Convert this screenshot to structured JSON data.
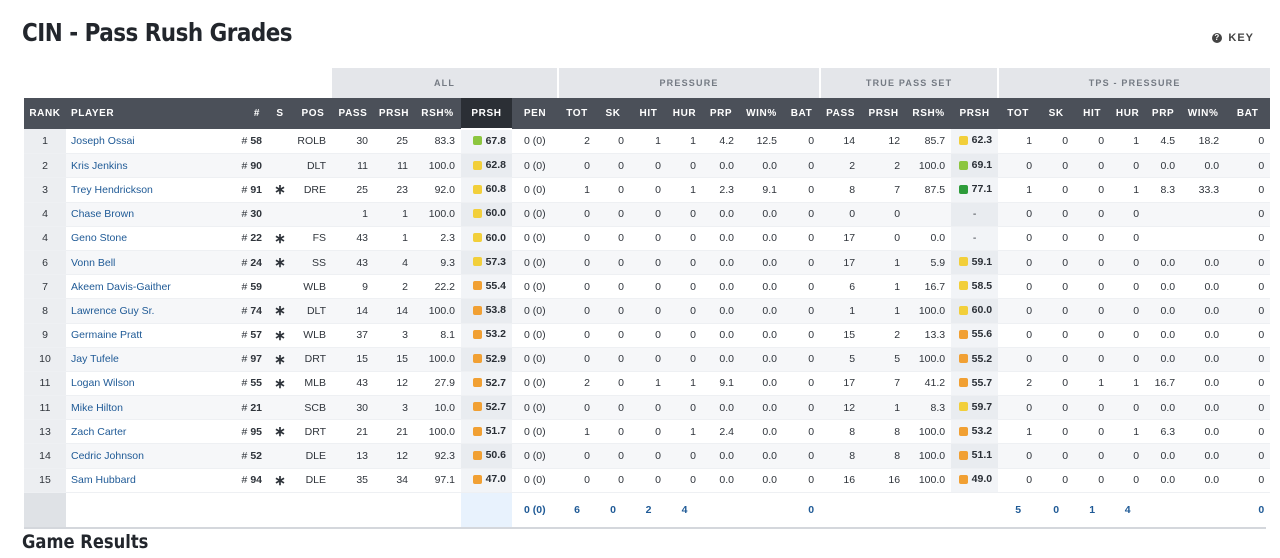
{
  "page": {
    "title": "CIN - Pass Rush Grades",
    "key_label": "KEY",
    "key_icon": "question-circle-icon"
  },
  "groups": {
    "all": "ALL",
    "pressure": "PRESSURE",
    "true_pass_set": "TRUE PASS SET",
    "tps_pressure": "TPS - PRESSURE"
  },
  "columns": [
    "RANK",
    "PLAYER",
    "#",
    "S",
    "POS",
    "PASS",
    "PRSH",
    "RSH%",
    "PRSH",
    "PEN",
    "TOT",
    "SK",
    "HIT",
    "HUR",
    "PRP",
    "WIN%",
    "BAT",
    "PASS",
    "PRSH",
    "RSH%",
    "PRSH",
    "TOT",
    "SK",
    "HIT",
    "HUR",
    "PRP",
    "WIN%",
    "BAT"
  ],
  "grade_colors": {
    "green": "#2e9c3a",
    "lime": "#8cc63f",
    "yellow": "#f2cf3a",
    "orange": "#f1a033"
  },
  "rows": [
    {
      "rank": "1",
      "player": "Joseph Ossai",
      "num": "58",
      "star": "",
      "pos": "ROLB",
      "pass": "30",
      "prsh": "25",
      "rsh": "83.3",
      "grade": "67.8",
      "gcolor": "#8cc63f",
      "pen": "0 (0)",
      "tot": "2",
      "sk": "0",
      "hit": "1",
      "hur": "1",
      "prp": "4.2",
      "win": "12.5",
      "bat": "0",
      "tps_pass": "14",
      "tps_prsh": "12",
      "tps_rsh": "85.7",
      "tps_grade": "62.3",
      "tps_gcolor": "#f2cf3a",
      "t_tot": "1",
      "t_sk": "0",
      "t_hit": "0",
      "t_hur": "1",
      "t_prp": "4.5",
      "t_win": "18.2",
      "t_bat": "0"
    },
    {
      "rank": "2",
      "player": "Kris Jenkins",
      "num": "90",
      "star": "",
      "pos": "DLT",
      "pass": "11",
      "prsh": "11",
      "rsh": "100.0",
      "grade": "62.8",
      "gcolor": "#f2cf3a",
      "pen": "0 (0)",
      "tot": "0",
      "sk": "0",
      "hit": "0",
      "hur": "0",
      "prp": "0.0",
      "win": "0.0",
      "bat": "0",
      "tps_pass": "2",
      "tps_prsh": "2",
      "tps_rsh": "100.0",
      "tps_grade": "69.1",
      "tps_gcolor": "#8cc63f",
      "t_tot": "0",
      "t_sk": "0",
      "t_hit": "0",
      "t_hur": "0",
      "t_prp": "0.0",
      "t_win": "0.0",
      "t_bat": "0"
    },
    {
      "rank": "3",
      "player": "Trey Hendrickson",
      "num": "91",
      "star": "∗",
      "pos": "DRE",
      "pass": "25",
      "prsh": "23",
      "rsh": "92.0",
      "grade": "60.8",
      "gcolor": "#f2cf3a",
      "pen": "0 (0)",
      "tot": "1",
      "sk": "0",
      "hit": "0",
      "hur": "1",
      "prp": "2.3",
      "win": "9.1",
      "bat": "0",
      "tps_pass": "8",
      "tps_prsh": "7",
      "tps_rsh": "87.5",
      "tps_grade": "77.1",
      "tps_gcolor": "#2e9c3a",
      "t_tot": "1",
      "t_sk": "0",
      "t_hit": "0",
      "t_hur": "1",
      "t_prp": "8.3",
      "t_win": "33.3",
      "t_bat": "0"
    },
    {
      "rank": "4",
      "player": "Chase Brown",
      "num": "30",
      "star": "",
      "pos": "",
      "pass": "1",
      "prsh": "1",
      "rsh": "100.0",
      "grade": "60.0",
      "gcolor": "#f2cf3a",
      "pen": "0 (0)",
      "tot": "0",
      "sk": "0",
      "hit": "0",
      "hur": "0",
      "prp": "0.0",
      "win": "0.0",
      "bat": "0",
      "tps_pass": "0",
      "tps_prsh": "0",
      "tps_rsh": "",
      "tps_grade": "-",
      "tps_gcolor": "",
      "t_tot": "0",
      "t_sk": "0",
      "t_hit": "0",
      "t_hur": "0",
      "t_prp": "",
      "t_win": "",
      "t_bat": "0"
    },
    {
      "rank": "4",
      "player": "Geno Stone",
      "num": "22",
      "star": "∗",
      "pos": "FS",
      "pass": "43",
      "prsh": "1",
      "rsh": "2.3",
      "grade": "60.0",
      "gcolor": "#f2cf3a",
      "pen": "0 (0)",
      "tot": "0",
      "sk": "0",
      "hit": "0",
      "hur": "0",
      "prp": "0.0",
      "win": "0.0",
      "bat": "0",
      "tps_pass": "17",
      "tps_prsh": "0",
      "tps_rsh": "0.0",
      "tps_grade": "-",
      "tps_gcolor": "",
      "t_tot": "0",
      "t_sk": "0",
      "t_hit": "0",
      "t_hur": "0",
      "t_prp": "",
      "t_win": "",
      "t_bat": "0"
    },
    {
      "rank": "6",
      "player": "Vonn Bell",
      "num": "24",
      "star": "∗",
      "pos": "SS",
      "pass": "43",
      "prsh": "4",
      "rsh": "9.3",
      "grade": "57.3",
      "gcolor": "#f2cf3a",
      "pen": "0 (0)",
      "tot": "0",
      "sk": "0",
      "hit": "0",
      "hur": "0",
      "prp": "0.0",
      "win": "0.0",
      "bat": "0",
      "tps_pass": "17",
      "tps_prsh": "1",
      "tps_rsh": "5.9",
      "tps_grade": "59.1",
      "tps_gcolor": "#f2cf3a",
      "t_tot": "0",
      "t_sk": "0",
      "t_hit": "0",
      "t_hur": "0",
      "t_prp": "0.0",
      "t_win": "0.0",
      "t_bat": "0"
    },
    {
      "rank": "7",
      "player": "Akeem Davis-Gaither",
      "num": "59",
      "star": "",
      "pos": "WLB",
      "pass": "9",
      "prsh": "2",
      "rsh": "22.2",
      "grade": "55.4",
      "gcolor": "#f1a033",
      "pen": "0 (0)",
      "tot": "0",
      "sk": "0",
      "hit": "0",
      "hur": "0",
      "prp": "0.0",
      "win": "0.0",
      "bat": "0",
      "tps_pass": "6",
      "tps_prsh": "1",
      "tps_rsh": "16.7",
      "tps_grade": "58.5",
      "tps_gcolor": "#f2cf3a",
      "t_tot": "0",
      "t_sk": "0",
      "t_hit": "0",
      "t_hur": "0",
      "t_prp": "0.0",
      "t_win": "0.0",
      "t_bat": "0"
    },
    {
      "rank": "8",
      "player": "Lawrence Guy Sr.",
      "num": "74",
      "star": "∗",
      "pos": "DLT",
      "pass": "14",
      "prsh": "14",
      "rsh": "100.0",
      "grade": "53.8",
      "gcolor": "#f1a033",
      "pen": "0 (0)",
      "tot": "0",
      "sk": "0",
      "hit": "0",
      "hur": "0",
      "prp": "0.0",
      "win": "0.0",
      "bat": "0",
      "tps_pass": "1",
      "tps_prsh": "1",
      "tps_rsh": "100.0",
      "tps_grade": "60.0",
      "tps_gcolor": "#f2cf3a",
      "t_tot": "0",
      "t_sk": "0",
      "t_hit": "0",
      "t_hur": "0",
      "t_prp": "0.0",
      "t_win": "0.0",
      "t_bat": "0"
    },
    {
      "rank": "9",
      "player": "Germaine Pratt",
      "num": "57",
      "star": "∗",
      "pos": "WLB",
      "pass": "37",
      "prsh": "3",
      "rsh": "8.1",
      "grade": "53.2",
      "gcolor": "#f1a033",
      "pen": "0 (0)",
      "tot": "0",
      "sk": "0",
      "hit": "0",
      "hur": "0",
      "prp": "0.0",
      "win": "0.0",
      "bat": "0",
      "tps_pass": "15",
      "tps_prsh": "2",
      "tps_rsh": "13.3",
      "tps_grade": "55.6",
      "tps_gcolor": "#f1a033",
      "t_tot": "0",
      "t_sk": "0",
      "t_hit": "0",
      "t_hur": "0",
      "t_prp": "0.0",
      "t_win": "0.0",
      "t_bat": "0"
    },
    {
      "rank": "10",
      "player": "Jay Tufele",
      "num": "97",
      "star": "∗",
      "pos": "DRT",
      "pass": "15",
      "prsh": "15",
      "rsh": "100.0",
      "grade": "52.9",
      "gcolor": "#f1a033",
      "pen": "0 (0)",
      "tot": "0",
      "sk": "0",
      "hit": "0",
      "hur": "0",
      "prp": "0.0",
      "win": "0.0",
      "bat": "0",
      "tps_pass": "5",
      "tps_prsh": "5",
      "tps_rsh": "100.0",
      "tps_grade": "55.2",
      "tps_gcolor": "#f1a033",
      "t_tot": "0",
      "t_sk": "0",
      "t_hit": "0",
      "t_hur": "0",
      "t_prp": "0.0",
      "t_win": "0.0",
      "t_bat": "0"
    },
    {
      "rank": "11",
      "player": "Logan Wilson",
      "num": "55",
      "star": "∗",
      "pos": "MLB",
      "pass": "43",
      "prsh": "12",
      "rsh": "27.9",
      "grade": "52.7",
      "gcolor": "#f1a033",
      "pen": "0 (0)",
      "tot": "2",
      "sk": "0",
      "hit": "1",
      "hur": "1",
      "prp": "9.1",
      "win": "0.0",
      "bat": "0",
      "tps_pass": "17",
      "tps_prsh": "7",
      "tps_rsh": "41.2",
      "tps_grade": "55.7",
      "tps_gcolor": "#f1a033",
      "t_tot": "2",
      "t_sk": "0",
      "t_hit": "1",
      "t_hur": "1",
      "t_prp": "16.7",
      "t_win": "0.0",
      "t_bat": "0"
    },
    {
      "rank": "11",
      "player": "Mike Hilton",
      "num": "21",
      "star": "",
      "pos": "SCB",
      "pass": "30",
      "prsh": "3",
      "rsh": "10.0",
      "grade": "52.7",
      "gcolor": "#f1a033",
      "pen": "0 (0)",
      "tot": "0",
      "sk": "0",
      "hit": "0",
      "hur": "0",
      "prp": "0.0",
      "win": "0.0",
      "bat": "0",
      "tps_pass": "12",
      "tps_prsh": "1",
      "tps_rsh": "8.3",
      "tps_grade": "59.7",
      "tps_gcolor": "#f2cf3a",
      "t_tot": "0",
      "t_sk": "0",
      "t_hit": "0",
      "t_hur": "0",
      "t_prp": "0.0",
      "t_win": "0.0",
      "t_bat": "0"
    },
    {
      "rank": "13",
      "player": "Zach Carter",
      "num": "95",
      "star": "∗",
      "pos": "DRT",
      "pass": "21",
      "prsh": "21",
      "rsh": "100.0",
      "grade": "51.7",
      "gcolor": "#f1a033",
      "pen": "0 (0)",
      "tot": "1",
      "sk": "0",
      "hit": "0",
      "hur": "1",
      "prp": "2.4",
      "win": "0.0",
      "bat": "0",
      "tps_pass": "8",
      "tps_prsh": "8",
      "tps_rsh": "100.0",
      "tps_grade": "53.2",
      "tps_gcolor": "#f1a033",
      "t_tot": "1",
      "t_sk": "0",
      "t_hit": "0",
      "t_hur": "1",
      "t_prp": "6.3",
      "t_win": "0.0",
      "t_bat": "0"
    },
    {
      "rank": "14",
      "player": "Cedric Johnson",
      "num": "52",
      "star": "",
      "pos": "DLE",
      "pass": "13",
      "prsh": "12",
      "rsh": "92.3",
      "grade": "50.6",
      "gcolor": "#f1a033",
      "pen": "0 (0)",
      "tot": "0",
      "sk": "0",
      "hit": "0",
      "hur": "0",
      "prp": "0.0",
      "win": "0.0",
      "bat": "0",
      "tps_pass": "8",
      "tps_prsh": "8",
      "tps_rsh": "100.0",
      "tps_grade": "51.1",
      "tps_gcolor": "#f1a033",
      "t_tot": "0",
      "t_sk": "0",
      "t_hit": "0",
      "t_hur": "0",
      "t_prp": "0.0",
      "t_win": "0.0",
      "t_bat": "0"
    },
    {
      "rank": "15",
      "player": "Sam Hubbard",
      "num": "94",
      "star": "∗",
      "pos": "DLE",
      "pass": "35",
      "prsh": "34",
      "rsh": "97.1",
      "grade": "47.0",
      "gcolor": "#f1a033",
      "pen": "0 (0)",
      "tot": "0",
      "sk": "0",
      "hit": "0",
      "hur": "0",
      "prp": "0.0",
      "win": "0.0",
      "bat": "0",
      "tps_pass": "16",
      "tps_prsh": "16",
      "tps_rsh": "100.0",
      "tps_grade": "49.0",
      "tps_gcolor": "#f1a033",
      "t_tot": "0",
      "t_sk": "0",
      "t_hit": "0",
      "t_hur": "0",
      "t_prp": "0.0",
      "t_win": "0.0",
      "t_bat": "0"
    }
  ],
  "totals": {
    "pen": "0 (0)",
    "tot": "6",
    "sk": "0",
    "hit": "2",
    "hur": "4",
    "bat": "0",
    "t_tot": "5",
    "t_sk": "0",
    "t_hit": "1",
    "t_hur": "4",
    "t_bat": "0"
  },
  "section": {
    "game_results": "Game Results"
  }
}
